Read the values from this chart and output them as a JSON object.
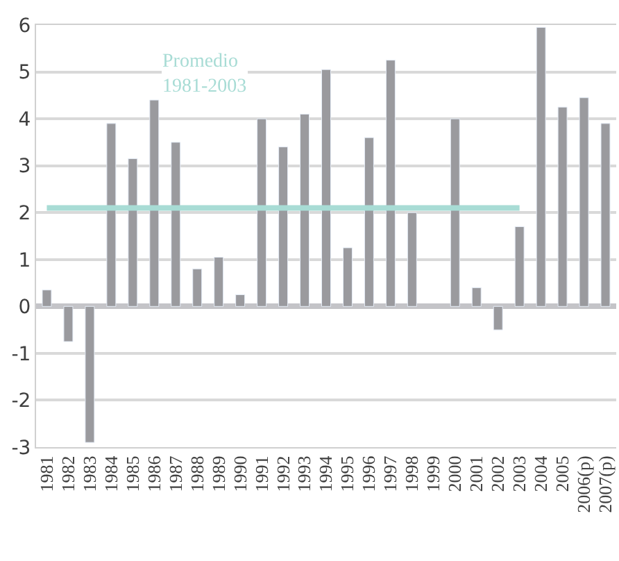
{
  "chart_data": {
    "type": "bar",
    "categories": [
      "1981",
      "1982",
      "1983",
      "1984",
      "1985",
      "1986",
      "1987",
      "1988",
      "1989",
      "1990",
      "1991",
      "1992",
      "1993",
      "1994",
      "1995",
      "1996",
      "1997",
      "1998",
      "1999",
      "2000",
      "2001",
      "2002",
      "2003",
      "2004",
      "2005",
      "2006(p)",
      "2007(p)"
    ],
    "series": [
      {
        "color": "#9a9a9e",
        "values": [
          0.35,
          -0.75,
          -2.9,
          3.9,
          3.15,
          4.4,
          3.5,
          0.8,
          1.05,
          0.25,
          4.0,
          3.4,
          4.1,
          5.05,
          1.25,
          3.6,
          5.25,
          2.0,
          null,
          4.0,
          0.4,
          -0.5,
          1.7,
          5.95,
          4.25,
          4.45,
          3.9
        ]
      },
      {
        "type": "line",
        "color": "#a8dcd5",
        "values": [
          2.1,
          2.1,
          2.1,
          2.1,
          2.1,
          2.1,
          2.1,
          2.1,
          2.1,
          2.1,
          2.1,
          2.1,
          2.1,
          2.1,
          2.1,
          2.1,
          2.1,
          2.1,
          2.1,
          2.1,
          2.1,
          2.1,
          2.1,
          null,
          null,
          null,
          null
        ]
      }
    ],
    "annotations": [
      "Promedio\n1981-2003"
    ],
    "ylim": [
      -3,
      6
    ],
    "yticks": [
      -3,
      -2,
      -1,
      0,
      1,
      2,
      3,
      4,
      5,
      6
    ],
    "grid": "y"
  }
}
